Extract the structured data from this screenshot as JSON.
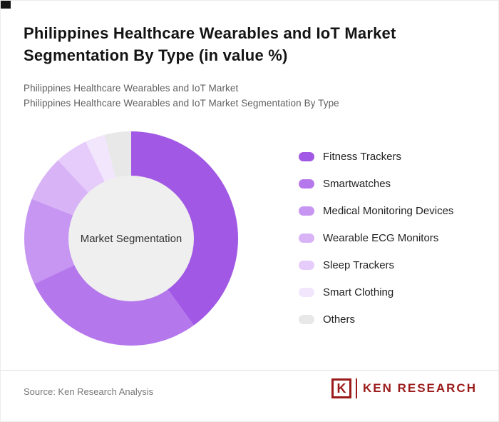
{
  "header": {
    "title": "Philippines Healthcare Wearables and IoT Market Segmentation By Type (in value %)",
    "subtitle1": "Philippines Healthcare Wearables and IoT Market",
    "subtitle2": "Philippines Healthcare Wearables and IoT Market Segmentation By Type"
  },
  "chart_data": {
    "type": "pie",
    "subtype": "donut",
    "title": "Philippines Healthcare Wearables and IoT Market Segmentation By Type (in value %)",
    "center_label": "Market Segmentation",
    "categories": [
      "Fitness Trackers",
      "Smartwatches",
      "Medical Monitoring Devices",
      "Wearable ECG Monitors",
      "Sleep Trackers",
      "Smart Clothing",
      "Others"
    ],
    "values": [
      40,
      28,
      13,
      7,
      5,
      3,
      4
    ],
    "colors": [
      "#a158e4",
      "#b577ec",
      "#c795f2",
      "#d8b4f7",
      "#e6ccfa",
      "#f2e6fd",
      "#e8e8e8"
    ],
    "legend_position": "right",
    "start_angle_deg": 0,
    "direction": "clockwise"
  },
  "footer": {
    "source": "Source: Ken Research Analysis",
    "logo_monogram": "K",
    "logo_text": "KEN RESEARCH",
    "logo_color": "#9b1b1b"
  }
}
